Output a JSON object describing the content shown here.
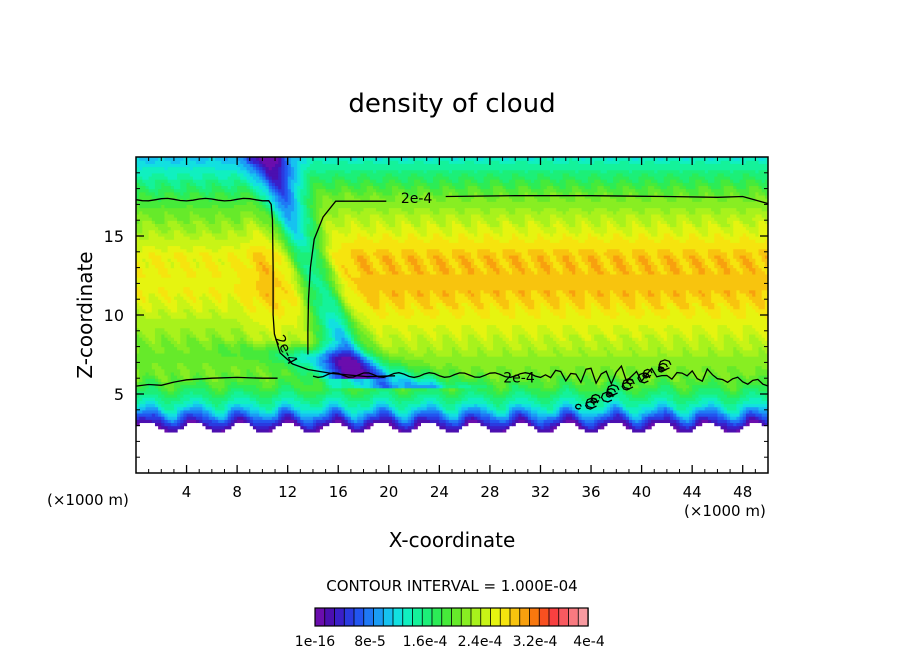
{
  "chart_data": {
    "type": "heatmap",
    "title": "density of cloud",
    "xlabel": "X-coordinate",
    "ylabel": "Z-coordinate",
    "x_unit": "(×1000 m)",
    "x_unit_right": "(×1000 m)",
    "xlim": [
      0,
      50
    ],
    "ylim": [
      0,
      20
    ],
    "x_ticks": [
      4,
      8,
      12,
      16,
      20,
      24,
      28,
      32,
      36,
      40,
      44,
      48
    ],
    "x_tick_labels": [
      "4",
      "8",
      "12",
      "16",
      "20",
      "24",
      "28",
      "32",
      "36",
      "40",
      "44",
      "48"
    ],
    "y_ticks": [
      5,
      10,
      15
    ],
    "y_tick_labels": [
      "5",
      "10",
      "15"
    ],
    "contour_interval_text": "CONTOUR INTERVAL = 1.000E-04",
    "contour_label_text": "2e-4",
    "colorbar": {
      "colors": [
        "#6a0dad",
        "#4b0fb0",
        "#3a1fc8",
        "#2a3ae0",
        "#2255f0",
        "#1f78f5",
        "#1b9cf5",
        "#16c2f0",
        "#12e0e0",
        "#10f0c0",
        "#14f29a",
        "#1cef78",
        "#2cec56",
        "#46ea3a",
        "#66ea2a",
        "#88ee22",
        "#a8f21c",
        "#c8f416",
        "#e6f410",
        "#f6e40e",
        "#f8c40e",
        "#f8a00e",
        "#f8780e",
        "#f85020",
        "#f84040",
        "#f85a60",
        "#f87a80",
        "#f89aa0"
      ],
      "tick_labels": [
        "1e-16",
        "8e-5",
        "1.6e-4",
        "2.4e-4",
        "3.2e-4",
        "4e-4"
      ],
      "range": [
        0,
        0.0004
      ]
    }
  }
}
